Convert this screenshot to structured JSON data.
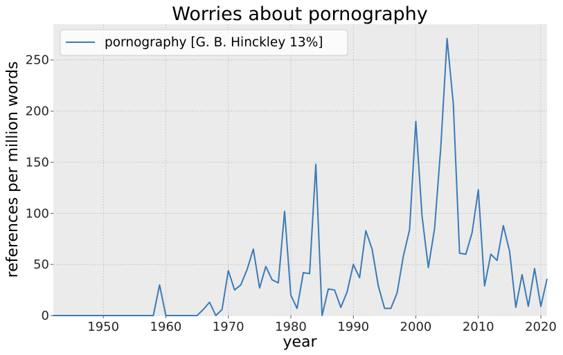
{
  "chart_data": {
    "type": "line",
    "title": "Worries about pornography",
    "xlabel": "year",
    "ylabel": "references per million words",
    "xlim": [
      1942,
      2021
    ],
    "ylim": [
      0,
      285
    ],
    "xticks": [
      1950,
      1960,
      1970,
      1980,
      1990,
      2000,
      2010,
      2020
    ],
    "yticks": [
      0,
      50,
      100,
      150,
      200,
      250
    ],
    "grid": true,
    "legend_position": "top-left",
    "background_color": "#ebebeb",
    "series": [
      {
        "name": "pornography [G. B. Hinckley 13%]",
        "color": "#3a7ab8",
        "x": [
          1942,
          1943,
          1944,
          1945,
          1946,
          1947,
          1948,
          1949,
          1950,
          1951,
          1952,
          1953,
          1954,
          1955,
          1956,
          1957,
          1958,
          1959,
          1960,
          1961,
          1962,
          1963,
          1964,
          1965,
          1966,
          1967,
          1968,
          1969,
          1970,
          1971,
          1972,
          1973,
          1974,
          1975,
          1976,
          1977,
          1978,
          1979,
          1980,
          1981,
          1982,
          1983,
          1984,
          1985,
          1986,
          1987,
          1988,
          1989,
          1990,
          1991,
          1992,
          1993,
          1994,
          1995,
          1996,
          1997,
          1998,
          1999,
          2000,
          2001,
          2002,
          2003,
          2004,
          2005,
          2006,
          2007,
          2008,
          2009,
          2010,
          2011,
          2012,
          2013,
          2014,
          2015,
          2016,
          2017,
          2018,
          2019,
          2020,
          2021
        ],
        "y": [
          0,
          0,
          0,
          0,
          0,
          0,
          0,
          0,
          0,
          0,
          0,
          0,
          0,
          0,
          0,
          0,
          0,
          30,
          0,
          0,
          0,
          0,
          0,
          0,
          6,
          13,
          0,
          6,
          44,
          25,
          30,
          45,
          65,
          27,
          48,
          35,
          32,
          102,
          20,
          7,
          42,
          41,
          148,
          0,
          26,
          25,
          8,
          23,
          50,
          37,
          83,
          65,
          29,
          7,
          7,
          22,
          58,
          84,
          190,
          97,
          47,
          85,
          165,
          271,
          207,
          61,
          60,
          81,
          123,
          29,
          60,
          54,
          88,
          63,
          8,
          40,
          9,
          46,
          9,
          36
        ]
      }
    ]
  }
}
